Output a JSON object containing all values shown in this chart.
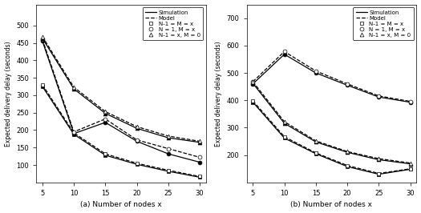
{
  "x": [
    5,
    10,
    15,
    20,
    25,
    30
  ],
  "ax1": {
    "sim_sq": [
      325,
      188,
      128,
      102,
      82,
      65
    ],
    "model_sq": [
      330,
      192,
      132,
      105,
      85,
      67
    ],
    "sim_circ": [
      455,
      190,
      222,
      168,
      132,
      108
    ],
    "model_circ": [
      460,
      195,
      232,
      172,
      147,
      122
    ],
    "sim_tri": [
      463,
      318,
      248,
      205,
      178,
      165
    ],
    "model_tri": [
      468,
      323,
      253,
      210,
      183,
      168
    ],
    "ylabel": "Expected delivery delay (seconds)",
    "xlabel": "(a) Number of nodes x",
    "ylim": [
      50,
      560
    ],
    "yticks": [
      100,
      150,
      200,
      250,
      300,
      350,
      400,
      450,
      500
    ]
  },
  "ax2": {
    "sim_sq": [
      393,
      262,
      205,
      158,
      130,
      148
    ],
    "model_sq": [
      398,
      267,
      208,
      162,
      133,
      150
    ],
    "sim_circ": [
      460,
      568,
      500,
      455,
      412,
      393
    ],
    "model_circ": [
      468,
      578,
      507,
      460,
      416,
      396
    ],
    "sim_tri": [
      462,
      316,
      248,
      210,
      183,
      168
    ],
    "model_tri": [
      468,
      322,
      252,
      213,
      187,
      171
    ],
    "ylabel": "Expected delivery delay (seconds)",
    "xlabel": "(b) Number of nodes x",
    "ylim": [
      100,
      750
    ],
    "yticks": [
      200,
      300,
      400,
      500,
      600,
      700
    ]
  },
  "legend_sim_label": "Simulation",
  "legend_model_label": "Model",
  "legend_sq_label": "N-1 = M = x",
  "legend_circ_label": "N = 1, M = x",
  "legend_tri_label": "N-1 = x, M = 0",
  "color_black": "#000000",
  "bg_color": "#ffffff"
}
